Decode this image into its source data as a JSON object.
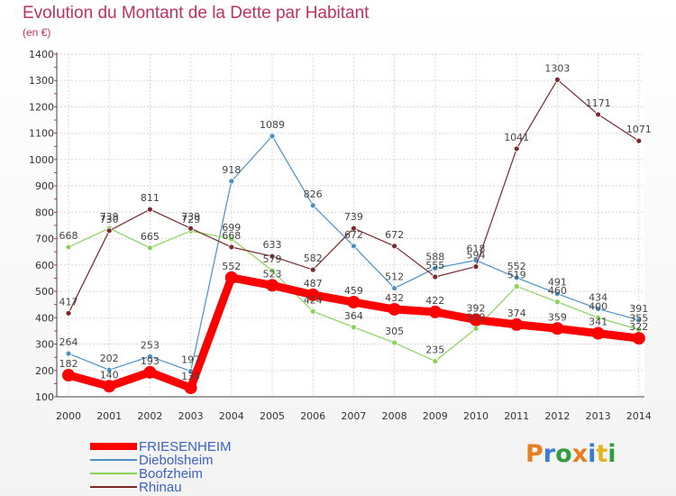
{
  "title": "Evolution du Montant de la Dette par Habitant",
  "subtitle": "(en €)",
  "logo": {
    "text": "Proxiti",
    "colors": [
      "#e67e22",
      "#3a7bd5",
      "#2e9e3e",
      "#e67e22",
      "#3a7bd5",
      "#e6b422",
      "#2e9e3e"
    ]
  },
  "chart_data": {
    "type": "line",
    "x": [
      2000,
      2001,
      2002,
      2003,
      2004,
      2005,
      2006,
      2007,
      2008,
      2009,
      2010,
      2011,
      2012,
      2013,
      2014
    ],
    "ylim": [
      100,
      1400
    ],
    "yticks": [
      100,
      200,
      300,
      400,
      500,
      600,
      700,
      800,
      900,
      1000,
      1100,
      1200,
      1300,
      1400
    ],
    "grid": true,
    "legend": "bottom-left",
    "series": [
      {
        "name": "FRIESENHEIM",
        "color": "#ff0000",
        "values": [
          182,
          140,
          193,
          134,
          552,
          523,
          487,
          459,
          432,
          422,
          392,
          374,
          359,
          341,
          322
        ]
      },
      {
        "name": "Diebolsheim",
        "color": "#4a90c8",
        "values": [
          264,
          202,
          253,
          197,
          918,
          1089,
          826,
          672,
          512,
          588,
          618,
          552,
          491,
          434,
          391
        ]
      },
      {
        "name": "Boofzheim",
        "color": "#88d35a",
        "values": [
          668,
          739,
          665,
          729,
          699,
          579,
          424,
          364,
          305,
          235,
          359,
          519,
          460,
          400,
          355
        ]
      },
      {
        "name": "Rhinau",
        "color": "#7a2a2a",
        "values": [
          417,
          730,
          811,
          739,
          668,
          633,
          582,
          739,
          672,
          555,
          594,
          1041,
          1303,
          1171,
          1071
        ]
      }
    ]
  }
}
